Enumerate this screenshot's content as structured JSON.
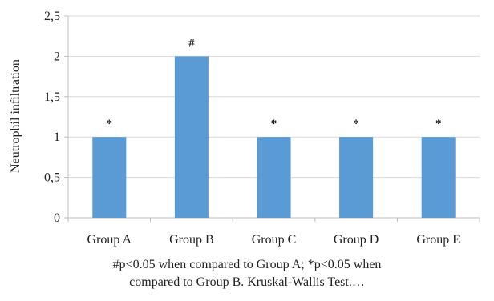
{
  "chart_data": {
    "type": "bar",
    "categories": [
      "Group A",
      "Group B",
      "Group C",
      "Group D",
      "Group E"
    ],
    "values": [
      1,
      2,
      1,
      1,
      1
    ],
    "annotations": [
      "*",
      "#",
      "*",
      "*",
      "*"
    ],
    "title": "",
    "xlabel": "",
    "ylabel": "Neutrophil infiltration",
    "ylim": [
      0,
      2.5
    ],
    "yticks": [
      {
        "value": 0,
        "label": "0"
      },
      {
        "value": 0.5,
        "label": "0,5"
      },
      {
        "value": 1,
        "label": "1"
      },
      {
        "value": 1.5,
        "label": "1,5"
      },
      {
        "value": 2,
        "label": "2"
      },
      {
        "value": 2.5,
        "label": "2,5"
      }
    ],
    "grid": true,
    "bar_color": "#5B9BD5",
    "grid_color": "#D9D9D9",
    "axis_color": "#BFBFBF"
  },
  "caption": {
    "line1": "#p<0.05 when compared to Group A; *p<0.05 when",
    "line2": "compared to Group B. Kruskal-Wallis Test.…"
  }
}
